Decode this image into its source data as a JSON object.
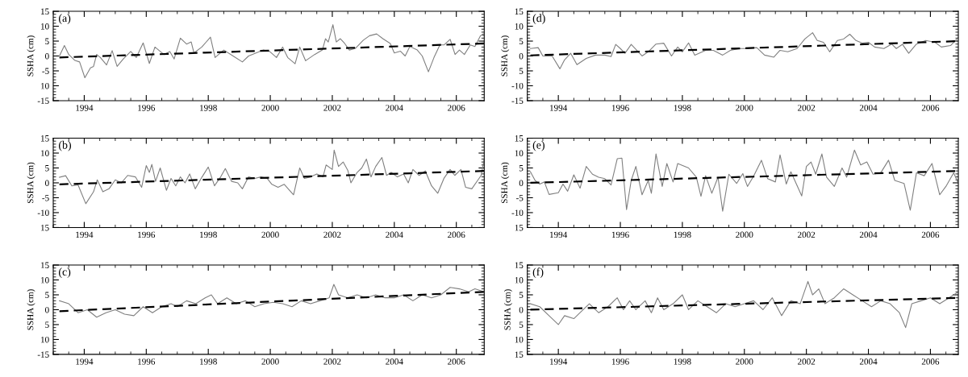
{
  "chart_data": [
    {
      "type": "line",
      "ylabel": "SSHA (cm)",
      "annotations": [
        "(a)"
      ],
      "xlim": [
        1993.0,
        2006.9
      ],
      "xticks": [
        1994,
        1996,
        1998,
        2000,
        2002,
        2004,
        2006
      ],
      "ylim": [
        -15,
        15
      ],
      "yticks": [
        {
          "value": -15,
          "label": "-15"
        },
        {
          "value": -10,
          "label": "10"
        },
        {
          "value": -5,
          "label": "-5"
        },
        0,
        5,
        10,
        15
      ],
      "grid": false,
      "series": [
        {
          "color": "#808080",
          "line_style": "solid",
          "x": [
            1993.2,
            1993.36,
            1993.5,
            1993.7,
            1993.85,
            1994.02,
            1994.2,
            1994.3,
            1994.4,
            1994.52,
            1994.72,
            1994.9,
            1995.06,
            1995.26,
            1995.5,
            1995.68,
            1995.9,
            1996.1,
            1996.28,
            1996.57,
            1996.76,
            1996.9,
            1997.1,
            1997.3,
            1997.45,
            1997.54,
            1997.79,
            1998.07,
            1998.22,
            1998.5,
            1998.8,
            1999.1,
            1999.3,
            1999.54,
            1999.78,
            1999.98,
            2000.2,
            2000.4,
            2000.56,
            2000.8,
            2000.95,
            2001.14,
            2001.43,
            2001.68,
            2001.78,
            2001.87,
            2002.02,
            2002.13,
            2002.26,
            2002.4,
            2002.55,
            2002.75,
            2003.0,
            2003.2,
            2003.43,
            2003.63,
            2003.87,
            2004.0,
            2004.2,
            2004.35,
            2004.5,
            2004.74,
            2004.9,
            2005.1,
            2005.28,
            2005.47,
            2005.6,
            2005.8,
            2005.96,
            2006.1,
            2006.26,
            2006.45,
            2006.6,
            2006.78,
            2006.87
          ],
          "values": [
            0,
            3.5,
            0.5,
            -1.5,
            -2,
            -7.3,
            -4,
            -3.5,
            0.5,
            -0.5,
            -3,
            1.8,
            -3.5,
            -1,
            1.5,
            -0.5,
            4.4,
            -2.5,
            3,
            0.5,
            1.5,
            -1,
            6,
            4,
            4.7,
            1,
            3,
            6.3,
            -0.5,
            2,
            0,
            -2,
            0,
            1,
            2,
            1.5,
            -0.5,
            3,
            -0.5,
            -2.6,
            3,
            -1.6,
            0.5,
            2,
            5.8,
            4.7,
            10.5,
            4.7,
            5.8,
            4.2,
            2,
            2.6,
            5.3,
            6.8,
            7.4,
            5.8,
            4.2,
            1,
            1.6,
            0,
            3.2,
            2,
            0,
            -5.3,
            -0.5,
            3.7,
            3.7,
            5.6,
            0.5,
            2,
            0.5,
            3.7,
            3.2,
            6.8,
            7.4
          ]
        },
        {
          "color": "#000000",
          "line_style": "dashed",
          "x": [
            1993.2,
            2006.9
          ],
          "values": [
            -0.5,
            4.2
          ]
        }
      ]
    },
    {
      "type": "line",
      "ylabel": "SSHA (cm)",
      "annotations": [
        "(b)"
      ],
      "xlim": [
        1993.0,
        2006.9
      ],
      "xticks": [
        1994,
        1996,
        1998,
        2000,
        2002,
        2004,
        2006
      ],
      "ylim": [
        -15,
        15
      ],
      "yticks": [
        {
          "value": -15,
          "label": "15"
        },
        -10,
        -5,
        0,
        5,
        10,
        15
      ],
      "grid": false,
      "series": [
        {
          "color": "#808080",
          "line_style": "solid",
          "x": [
            1993.2,
            1993.4,
            1993.6,
            1993.8,
            1994.05,
            1994.3,
            1994.42,
            1994.6,
            1994.8,
            1995.0,
            1995.2,
            1995.4,
            1995.65,
            1995.85,
            1996.0,
            1996.1,
            1996.18,
            1996.3,
            1996.45,
            1996.65,
            1996.8,
            1996.95,
            1997.1,
            1997.25,
            1997.4,
            1997.58,
            1997.8,
            1998.0,
            1998.2,
            1998.4,
            1998.55,
            1998.75,
            1998.95,
            1999.1,
            1999.3,
            1999.5,
            1999.7,
            1999.9,
            2000.05,
            2000.25,
            2000.45,
            2000.75,
            2000.95,
            2001.1,
            2001.3,
            2001.5,
            2001.7,
            2001.8,
            2002.0,
            2002.06,
            2002.2,
            2002.35,
            2002.5,
            2002.6,
            2002.8,
            2002.95,
            2003.1,
            2003.25,
            2003.4,
            2003.6,
            2003.75,
            2003.9,
            2004.1,
            2004.3,
            2004.45,
            2004.6,
            2004.8,
            2005.0,
            2005.2,
            2005.4,
            2005.6,
            2005.8,
            2005.95,
            2006.15,
            2006.3,
            2006.5,
            2006.7,
            2006.8,
            2006.9
          ],
          "values": [
            1.9,
            2.4,
            -1,
            -0.7,
            -7,
            -3,
            1,
            -3,
            -2,
            1,
            0,
            2.5,
            2,
            -1.5,
            5.8,
            3.5,
            6.2,
            0.5,
            5,
            -2.5,
            1.5,
            -1,
            2,
            0,
            3,
            -2,
            2,
            5.3,
            -1,
            2,
            4.8,
            0.5,
            0,
            -2,
            2,
            1.5,
            2,
            1.5,
            -0.5,
            -1.5,
            -0.5,
            -4,
            5,
            1.5,
            2,
            3,
            2,
            6,
            4.5,
            11,
            5.5,
            7,
            4.2,
            0,
            3.5,
            5,
            8,
            2,
            5.5,
            8.5,
            2.5,
            3.5,
            2,
            3,
            0,
            4.5,
            2.5,
            4,
            -1,
            -3.5,
            1.5,
            4.5,
            2.5,
            4.5,
            -1.5,
            -2,
            1,
            2.5,
            8
          ]
        },
        {
          "color": "#000000",
          "line_style": "dashed",
          "x": [
            1993.2,
            2006.9
          ],
          "values": [
            -0.5,
            4
          ]
        }
      ]
    },
    {
      "type": "line",
      "ylabel": "SSHA (cm)",
      "annotations": [
        "(c)"
      ],
      "xlim": [
        1993.0,
        2006.9
      ],
      "xticks": [
        1994,
        1996,
        1998,
        2000,
        2002,
        2004,
        2006
      ],
      "ylim": [
        -15,
        15
      ],
      "yticks": [
        -15,
        {
          "value": -10,
          "label": "10"
        },
        {
          "value": -5,
          "label": "5"
        },
        0,
        5,
        10,
        15
      ],
      "grid": false,
      "series": [
        {
          "color": "#808080",
          "line_style": "solid",
          "x": [
            1993.2,
            1993.5,
            1993.8,
            1994.1,
            1994.4,
            1994.7,
            1995.0,
            1995.3,
            1995.6,
            1995.9,
            1996.2,
            1996.5,
            1996.8,
            1997.0,
            1997.3,
            1997.6,
            1997.9,
            1998.1,
            1998.3,
            1998.6,
            1998.9,
            1999.2,
            1999.5,
            1999.8,
            2000.1,
            2000.4,
            2000.7,
            2001.0,
            2001.3,
            2001.6,
            2001.9,
            2002.05,
            2002.2,
            2002.5,
            2002.8,
            2003.1,
            2003.4,
            2003.7,
            2004.0,
            2004.3,
            2004.6,
            2004.9,
            2005.2,
            2005.5,
            2005.8,
            2006.1,
            2006.4,
            2006.6,
            2006.9
          ],
          "values": [
            3,
            2,
            -1,
            0,
            -2.5,
            -1,
            0,
            -1.5,
            -2,
            1,
            -1,
            1,
            2,
            1,
            3,
            2,
            4,
            5,
            2,
            4,
            2,
            3,
            1,
            2,
            2.5,
            2,
            1,
            3,
            2,
            3,
            4,
            8.5,
            5,
            4,
            5,
            4,
            5,
            4,
            4,
            5,
            3,
            5,
            4,
            5,
            7.5,
            7,
            6,
            7,
            6
          ]
        },
        {
          "color": "#000000",
          "line_style": "dashed",
          "x": [
            1993.2,
            2006.9
          ],
          "values": [
            -0.5,
            6
          ]
        }
      ]
    },
    {
      "type": "line",
      "ylabel": "SSHA (cm)",
      "annotations": [
        "(d)"
      ],
      "xlim": [
        1993.0,
        2006.9
      ],
      "xticks": [
        1994,
        1996,
        1998,
        2000,
        2002,
        2004,
        2006
      ],
      "ylim": [
        -15,
        15
      ],
      "yticks": [
        -15,
        -10,
        {
          "value": -5,
          "label": "5"
        },
        0,
        5,
        10,
        15
      ],
      "grid": false,
      "series": [
        {
          "color": "#808080",
          "line_style": "solid",
          "x": [
            1993.1,
            1993.35,
            1993.5,
            1993.8,
            1994.05,
            1994.2,
            1994.4,
            1994.6,
            1994.9,
            1995.2,
            1995.5,
            1995.7,
            1995.85,
            1996.0,
            1996.15,
            1996.35,
            1996.7,
            1996.9,
            1997.15,
            1997.4,
            1997.65,
            1997.85,
            1998.0,
            1998.2,
            1998.4,
            1998.75,
            1999.0,
            1999.3,
            1999.55,
            1999.85,
            2000.1,
            2000.4,
            2000.65,
            2000.95,
            2001.15,
            2001.4,
            2001.7,
            2001.95,
            2002.2,
            2002.35,
            2002.55,
            2002.75,
            2003.0,
            2003.2,
            2003.4,
            2003.6,
            2003.8,
            2004.0,
            2004.2,
            2004.5,
            2004.75,
            2004.9,
            2005.1,
            2005.3,
            2005.55,
            2005.85,
            2006.15,
            2006.35,
            2006.65,
            2006.9
          ],
          "values": [
            2.5,
            2.8,
            0,
            0,
            -4.3,
            -1.3,
            0.9,
            -2.9,
            -0.8,
            0.3,
            0.3,
            -0.2,
            3.9,
            2.5,
            0.9,
            3.9,
            0,
            1.4,
            4,
            4.3,
            0,
            3,
            1.4,
            4.4,
            0.3,
            1.9,
            1.9,
            0.3,
            1.9,
            2.5,
            2.5,
            2.8,
            0.3,
            -0.4,
            1.9,
            1.4,
            2.5,
            5.7,
            7.8,
            5.2,
            4.6,
            1.4,
            5.2,
            5.7,
            7.3,
            5.2,
            4.3,
            4.6,
            3,
            2.5,
            4,
            2.5,
            3.9,
            0.9,
            4,
            5.2,
            4.6,
            3,
            3.5,
            6.2
          ]
        },
        {
          "color": "#000000",
          "line_style": "dashed",
          "x": [
            1993.1,
            2006.9
          ],
          "values": [
            0.2,
            5
          ]
        }
      ]
    },
    {
      "type": "line",
      "ylabel": "SSHA (cm)",
      "annotations": [
        "(e)"
      ],
      "xlim": [
        1993.0,
        2006.9
      ],
      "xticks": [
        1994,
        1996,
        1998,
        2000,
        2002,
        2004,
        2006
      ],
      "ylim": [
        -15,
        15
      ],
      "yticks": [
        {
          "value": -15,
          "label": "15"
        },
        -10,
        -5,
        0,
        5,
        10,
        15
      ],
      "grid": false,
      "series": [
        {
          "color": "#808080",
          "line_style": "solid",
          "x": [
            1993.1,
            1993.25,
            1993.4,
            1993.55,
            1993.7,
            1994.0,
            1994.15,
            1994.3,
            1994.5,
            1994.7,
            1994.9,
            1995.1,
            1995.3,
            1995.5,
            1995.7,
            1995.9,
            1996.05,
            1996.2,
            1996.35,
            1996.5,
            1996.7,
            1996.9,
            1997.0,
            1997.15,
            1997.35,
            1997.5,
            1997.7,
            1997.85,
            1998.2,
            1998.45,
            1998.6,
            1998.75,
            1998.95,
            1999.15,
            1999.3,
            1999.5,
            1999.75,
            1999.95,
            2000.1,
            2000.3,
            2000.55,
            2000.75,
            2001.0,
            2001.15,
            2001.35,
            2001.5,
            2001.85,
            2002.0,
            2002.15,
            2002.3,
            2002.5,
            2002.65,
            2002.9,
            2003.15,
            2003.3,
            2003.55,
            2003.75,
            2003.95,
            2004.15,
            2004.4,
            2004.65,
            2004.85,
            2005.15,
            2005.35,
            2005.55,
            2005.8,
            2006.05,
            2006.3,
            2006.5,
            2006.75,
            2006.9
          ],
          "values": [
            3.7,
            0.8,
            -0.4,
            0.3,
            -3.9,
            -3.3,
            -0.4,
            -2.8,
            2.7,
            -1.8,
            5.5,
            2.9,
            1.9,
            1.4,
            -0.7,
            8.1,
            8.3,
            -9,
            0.8,
            5.5,
            -4,
            0.8,
            -3.5,
            9.7,
            -1.2,
            6.5,
            0.3,
            6.5,
            5,
            1.9,
            -4.5,
            2.4,
            -3.5,
            1.9,
            -9.5,
            2.9,
            -0.2,
            3.1,
            -1.2,
            2.3,
            7.6,
            1.4,
            0.3,
            9.4,
            -0.4,
            3.7,
            -4.4,
            5.5,
            7,
            2.9,
            9.7,
            1.9,
            -1.2,
            5,
            1.9,
            11,
            6,
            7,
            2.9,
            3.4,
            7.6,
            0.8,
            -0.2,
            -9.2,
            3.4,
            2.4,
            6.5,
            -4,
            -1.2,
            3.4,
            -0.2
          ]
        },
        {
          "color": "#000000",
          "line_style": "dashed",
          "x": [
            1993.1,
            2006.9
          ],
          "values": [
            0,
            4
          ]
        }
      ]
    },
    {
      "type": "line",
      "ylabel": "SSHA (cm)",
      "annotations": [
        "(f)"
      ],
      "xlim": [
        1993.0,
        2006.9
      ],
      "xticks": [
        1994,
        1996,
        1998,
        2000,
        2002,
        2004,
        2006
      ],
      "ylim": [
        -15,
        15
      ],
      "yticks": [
        {
          "value": -15,
          "label": "15"
        },
        {
          "value": -10,
          "label": "10"
        },
        {
          "value": -5,
          "label": "5"
        },
        0,
        5,
        10,
        15
      ],
      "grid": false,
      "series": [
        {
          "color": "#808080",
          "line_style": "solid",
          "x": [
            1993.1,
            1993.4,
            1993.7,
            1994.0,
            1994.2,
            1994.5,
            1994.8,
            1995.0,
            1995.3,
            1995.6,
            1995.9,
            1996.1,
            1996.3,
            1996.5,
            1996.8,
            1997.0,
            1997.2,
            1997.4,
            1997.7,
            1998.0,
            1998.2,
            1998.5,
            1998.8,
            1999.1,
            1999.4,
            1999.7,
            2000.0,
            2000.3,
            2000.6,
            2000.9,
            2001.2,
            2001.5,
            2001.8,
            2002.05,
            2002.2,
            2002.4,
            2002.6,
            2002.9,
            2003.2,
            2003.5,
            2003.8,
            2004.1,
            2004.4,
            2004.7,
            2005.0,
            2005.2,
            2005.4,
            2005.7,
            2006.0,
            2006.3,
            2006.6,
            2006.9
          ],
          "values": [
            2,
            1,
            -2,
            -5,
            -2,
            -3,
            0,
            2,
            -1,
            1,
            4,
            0,
            3,
            0,
            3,
            -1,
            4,
            0,
            2,
            5,
            0,
            3,
            1,
            -1,
            2,
            1,
            2,
            3,
            0,
            4,
            -2,
            3,
            2,
            9.5,
            5,
            7,
            2,
            4,
            7,
            5,
            3,
            1,
            3,
            2,
            -1,
            -6,
            2,
            3,
            4,
            2,
            4,
            6
          ]
        },
        {
          "color": "#000000",
          "line_style": "dashed",
          "x": [
            1993.1,
            2006.9
          ],
          "values": [
            0,
            4
          ]
        }
      ]
    }
  ]
}
